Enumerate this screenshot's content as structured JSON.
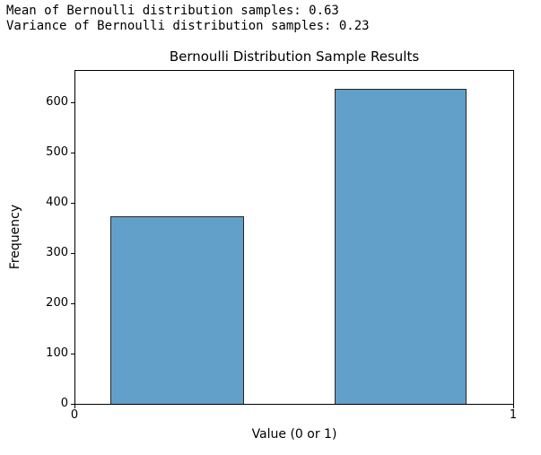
{
  "stdout": {
    "line1": "Mean of Bernoulli distribution samples: 0.63",
    "line2": "Variance of Bernoulli distribution samples: 0.23"
  },
  "chart_data": {
    "type": "bar",
    "title": "Bernoulli Distribution Sample Results",
    "xlabel": "Value (0 or 1)",
    "ylabel": "Frequency",
    "categories": [
      0,
      1
    ],
    "values": [
      373,
      627
    ],
    "x_tick_labels": [
      "0",
      "1"
    ],
    "y_tick_values": [
      0,
      100,
      200,
      300,
      400,
      500,
      600
    ],
    "xlim": [
      0,
      1
    ],
    "ylim": [
      0,
      662
    ],
    "grid": false,
    "legend": null,
    "bar_color": "#62a0ca",
    "bar_edge_color": "#262626",
    "axis_color": "#000000"
  }
}
